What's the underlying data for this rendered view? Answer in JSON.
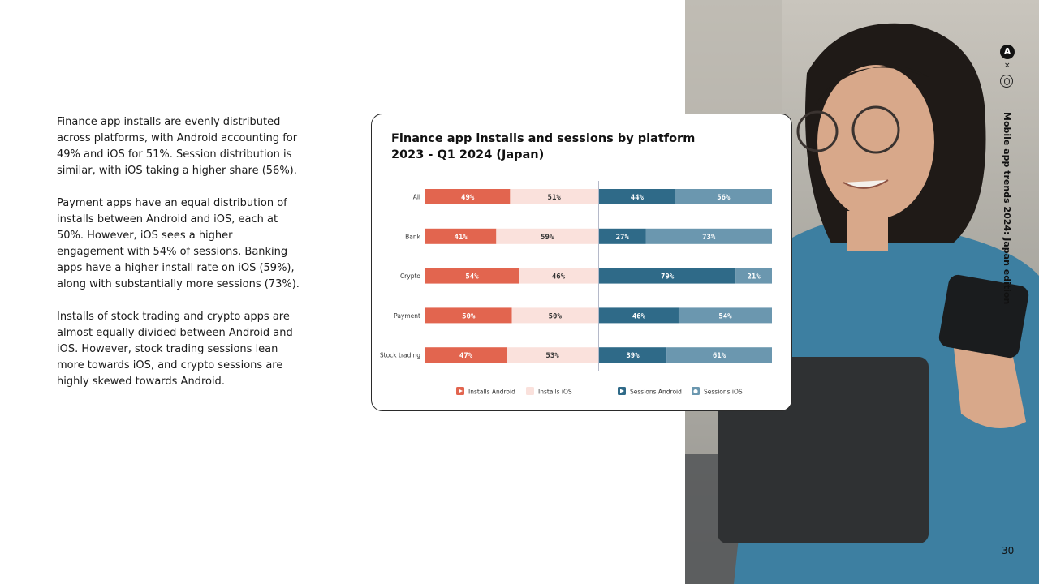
{
  "paragraphs": [
    "Finance app installs are evenly distributed across platforms, with Android accounting for 49% and iOS for 51%. Session distribution is similar, with iOS taking a higher share (56%).",
    "Payment apps have an equal distribution of installs between Android and iOS, each at 50%. However, iOS sees a higher engagement with 54% of sessions. Banking apps have a higher install rate on iOS (59%), along with substantially more sessions (73%).",
    "Installs of stock trading and crypto apps are almost equally divided between Android and iOS. However, stock trading sessions lean more towards iOS, and crypto sessions are highly skewed towards Android."
  ],
  "side_title": "Mobile app trends 2024: Japan edition",
  "logo_letter": "A",
  "logo_separator": "×",
  "page_number": "30",
  "colors": {
    "installs_android": "#e2654f",
    "installs_ios": "#fae1dc",
    "sessions_android": "#2f6a88",
    "sessions_ios": "#6b97af"
  },
  "chart_data": {
    "type": "bar",
    "title_line1": "Finance app installs and sessions by platform",
    "title_line2": "2023 - Q1 2024 (Japan)",
    "categories": [
      "All",
      "Bank",
      "Crypto",
      "Payment",
      "Stock trading"
    ],
    "series": [
      {
        "name": "Installs Android",
        "group": "installs",
        "values": [
          49,
          41,
          54,
          50,
          47
        ]
      },
      {
        "name": "Installs iOS",
        "group": "installs",
        "values": [
          51,
          59,
          46,
          50,
          53
        ]
      },
      {
        "name": "Sessions Android",
        "group": "sessions",
        "values": [
          44,
          27,
          79,
          46,
          39
        ]
      },
      {
        "name": "Sessions iOS",
        "group": "sessions",
        "values": [
          56,
          73,
          21,
          54,
          61
        ]
      }
    ],
    "value_suffix": "%",
    "stacking": "100% stacked horizontal bars, installs and sessions side by side",
    "legend_position": "bottom"
  }
}
